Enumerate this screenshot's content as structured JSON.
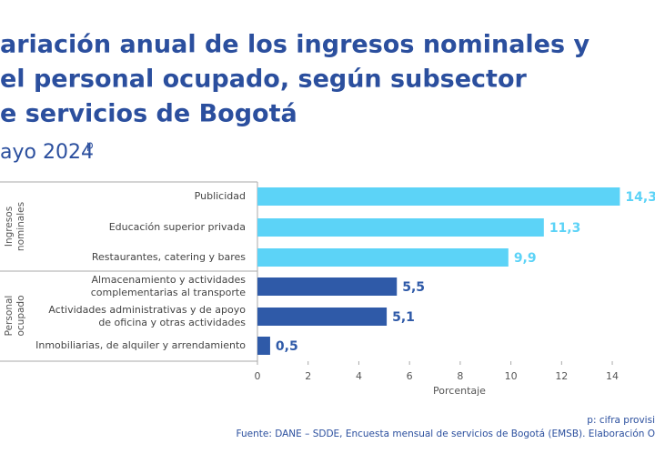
{
  "chart_data": {
    "type": "bar",
    "title": [
      "ariación anual de los ingresos nominales y",
      "el personal ocupado, según subsector",
      "e servicios de Bogotá"
    ],
    "subtitle": "ayo 2024",
    "subtitle_superscript": "p",
    "x_label": "Porcentaje",
    "series": [
      {
        "name": [
          "Ingresos",
          "nominales"
        ],
        "color": "#5cd3f7",
        "categories": [
          "Publicidad",
          "Educación superior privada",
          "Restaurantes, catering y bares"
        ],
        "values": [
          14.3,
          11.3,
          9.9
        ],
        "value_labels": [
          "14,3",
          "11,3",
          "9,9"
        ]
      },
      {
        "name": [
          "Personal",
          "ocupado"
        ],
        "color": "#2f5aa8",
        "categories": [
          [
            "Almacenamiento y actividades",
            "complementarias al transporte"
          ],
          [
            "Actividades administrativas y de apoyo",
            "de oficina y otras actividades"
          ],
          "Inmobiliarias, de alquiler y arrendamiento"
        ],
        "values": [
          5.5,
          5.1,
          0.5
        ],
        "value_labels": [
          "5,5",
          "5,1",
          "0,5"
        ]
      }
    ],
    "xlim": [
      0,
      16
    ],
    "xticks": [
      0,
      2,
      4,
      6,
      8,
      10,
      12,
      14
    ],
    "notes": [
      "p: cifra provisi",
      "Fuente: DANE – SDDE, Encuesta mensual de servicios de Bogotá (EMSB). Elaboración O"
    ]
  }
}
